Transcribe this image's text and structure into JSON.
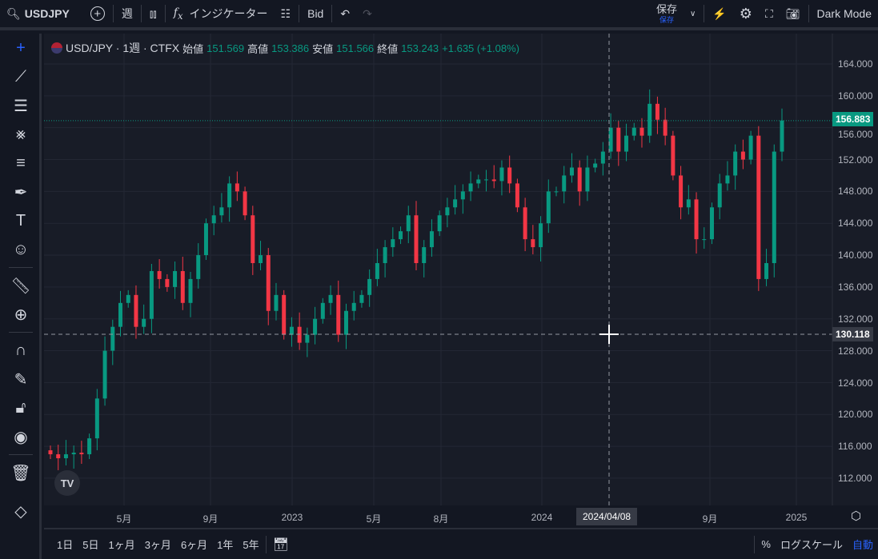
{
  "topbar": {
    "symbol": "USDJPY",
    "interval": "週",
    "indicators": "インジケーター",
    "bid": "Bid",
    "save": "保存",
    "save_sub": "保存",
    "theme": "Dark Mode"
  },
  "legend": {
    "title": "USD/JPY · 1週 · CTFX",
    "open_label": "始値",
    "open": "151.569",
    "high_label": "高値",
    "high": "153.386",
    "low_label": "安値",
    "low": "151.566",
    "close_label": "終値",
    "close": "153.243",
    "change": "+1.635 (+1.08%)"
  },
  "price_axis": {
    "labels": [
      "164.000",
      "160.000",
      "156.000",
      "152.000",
      "148.000",
      "144.000",
      "140.000",
      "136.000",
      "132.000",
      "128.000",
      "124.000",
      "120.000",
      "116.000",
      "112.000"
    ],
    "current_price": "156.883",
    "crosshair_price": "130.118"
  },
  "time_axis": {
    "labels": [
      {
        "t": "5月"
      },
      {
        "t": "9月"
      },
      {
        "t": "2023"
      },
      {
        "t": "5月"
      },
      {
        "t": "8月"
      },
      {
        "t": "2024"
      },
      {
        "t": "9月"
      },
      {
        "t": "2025"
      }
    ],
    "crosshair_date": "2024/04/08"
  },
  "bottombar": {
    "ranges": [
      "1日",
      "5日",
      "1ヶ月",
      "3ヶ月",
      "6ヶ月",
      "1年",
      "5年"
    ],
    "percent": "%",
    "log": "ログスケール",
    "auto": "自動"
  },
  "colors": {
    "up": "#089981",
    "down": "#f23645",
    "accent": "#2962ff"
  },
  "chart_data": {
    "type": "candlestick",
    "ylim": [
      110,
      166
    ],
    "closes": [
      115,
      114.5,
      115,
      115.2,
      115,
      117,
      122,
      128,
      131,
      134,
      135,
      131,
      132,
      138,
      137,
      136,
      138,
      134,
      137,
      140,
      144,
      145,
      146,
      149,
      148,
      145,
      139,
      140,
      133,
      135,
      130,
      131,
      129,
      130,
      132,
      134,
      135,
      130,
      133,
      134,
      135,
      137,
      139,
      141,
      142,
      143,
      145,
      139,
      141,
      143,
      145,
      146,
      147,
      148,
      149,
      149.5,
      149.5,
      149.3,
      151,
      149,
      146,
      142,
      141,
      144,
      148,
      148,
      150,
      151,
      148,
      151,
      151.5,
      153,
      156,
      153,
      155,
      156,
      155,
      159,
      157,
      155,
      150,
      146,
      147,
      142,
      142,
      146,
      149,
      150,
      153,
      152,
      155,
      137,
      139,
      153,
      156.9
    ]
  }
}
